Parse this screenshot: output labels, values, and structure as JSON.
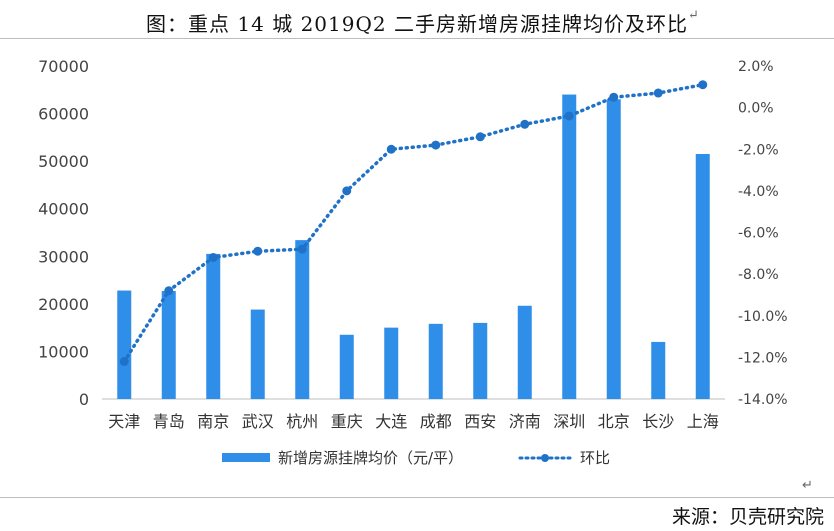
{
  "header": {
    "title": "图：重点 14 城 2019Q2 二手房新增房源挂牌均价及环比",
    "return_mark": "↵"
  },
  "footer": {
    "source": "来源：贝壳研究院",
    "return_mark": "↵"
  },
  "colors": {
    "bar": "#2f8fe8",
    "line": "#1f72c8",
    "axis": "#bfbfbf"
  },
  "chart_data": {
    "type": "bar",
    "categories": [
      "天津",
      "青岛",
      "南京",
      "武汉",
      "杭州",
      "重庆",
      "大连",
      "成都",
      "西安",
      "济南",
      "深圳",
      "北京",
      "长沙",
      "上海"
    ],
    "series": [
      {
        "name": "新增房源挂牌均价（元/平）",
        "type": "bar",
        "axis": "left",
        "values": [
          22800,
          22700,
          30500,
          18800,
          33400,
          13500,
          15000,
          15800,
          16000,
          19600,
          64000,
          63000,
          12000,
          51500
        ]
      },
      {
        "name": "环比",
        "type": "line",
        "axis": "right",
        "style": "dotted-with-markers",
        "values": [
          -12.2,
          -8.8,
          -7.2,
          -6.9,
          -6.8,
          -4.0,
          -2.0,
          -1.8,
          -1.4,
          -0.8,
          -0.4,
          0.5,
          0.7,
          1.1
        ]
      }
    ],
    "y_left": {
      "min": 0,
      "max": 70000,
      "ticks": [
        "0",
        "10000",
        "20000",
        "30000",
        "40000",
        "50000",
        "60000",
        "70000"
      ]
    },
    "y_right": {
      "min": -14,
      "max": 2,
      "ticks": [
        "-14.0%",
        "-12.0%",
        "-10.0%",
        "-8.0%",
        "-6.0%",
        "-4.0%",
        "-2.0%",
        "0.0%",
        "2.0%"
      ]
    },
    "grid": false,
    "legend_position": "bottom"
  }
}
